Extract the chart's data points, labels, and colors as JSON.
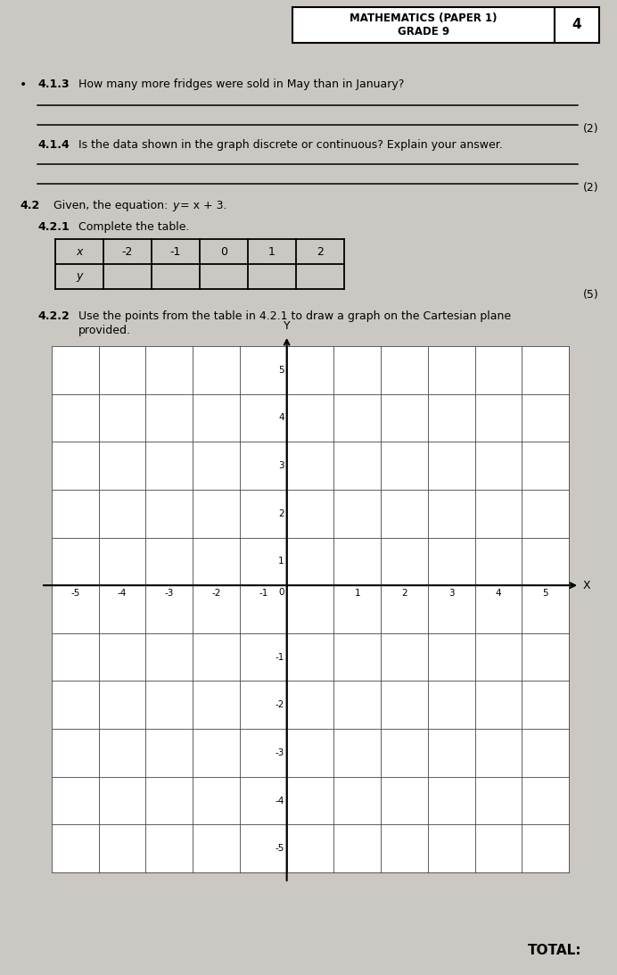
{
  "bg_color": "#cbc8c4",
  "header_text1": "MATHEMATICS (PAPER 1)",
  "header_text2": "GRADE 9",
  "header_page": "4",
  "q413_label": "4.1.3",
  "q413_text": "How many more fridges were sold in May than in January?",
  "q413_mark": "(2)",
  "q414_label": "4.1.4",
  "q414_text": "Is the data shown in the graph discrete or continuous? Explain your answer.",
  "q414_mark": "(2)",
  "q42_label": "4.2",
  "q421_label": "4.2.1",
  "q421_text": "Complete the table.",
  "q421_mark": "(5)",
  "table_x_vals": [
    "x",
    "-2",
    "-1",
    "0",
    "1",
    "2"
  ],
  "table_y_label": "y",
  "q422_label": "4.2.2",
  "q422_line1": "Use the points from the table in 4.2.1 to draw a graph on the Cartesian plane",
  "q422_line2": "provided.",
  "total_text": "TOTAL:",
  "axis_label_x": "X",
  "axis_label_y": "Y"
}
